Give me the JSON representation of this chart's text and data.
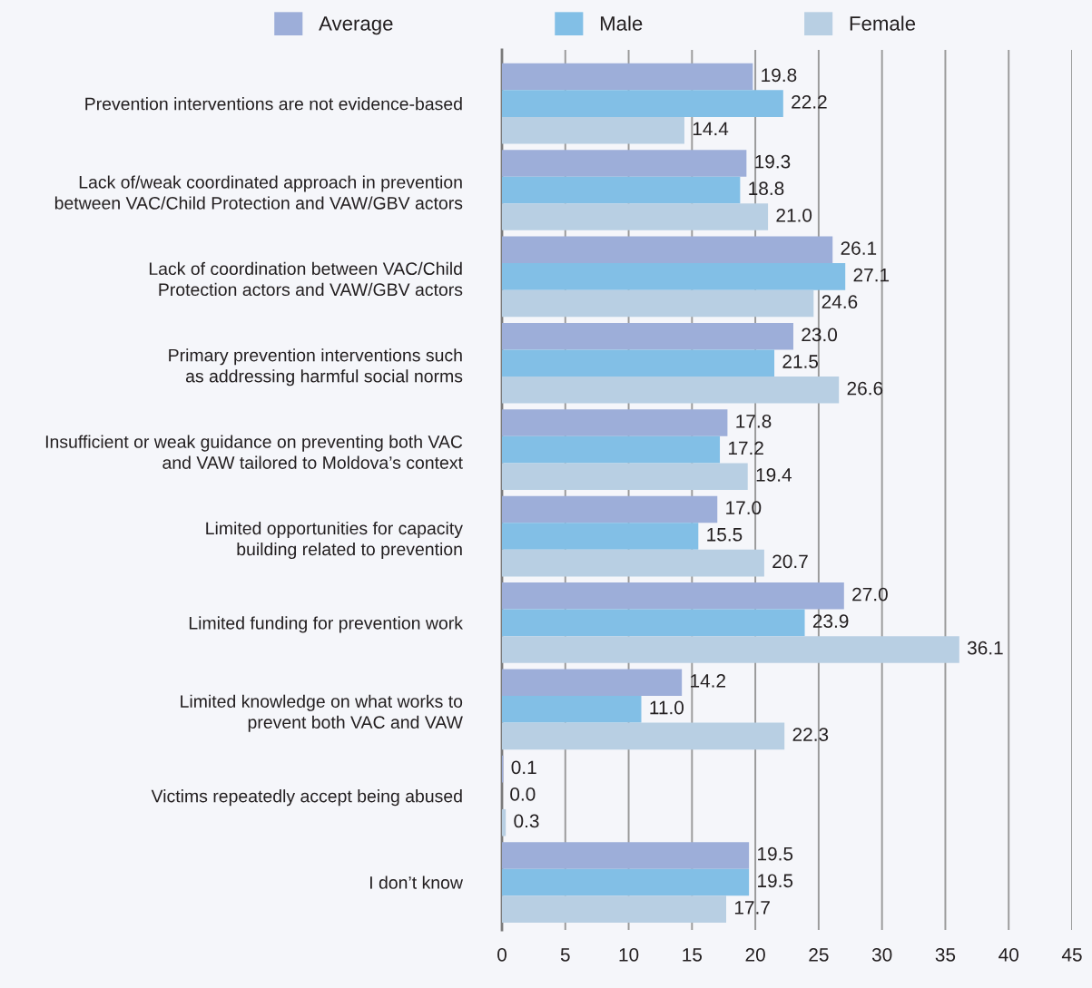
{
  "chart_data": {
    "type": "bar",
    "orientation": "horizontal",
    "categories": [
      "Prevention interventions are not evidence-based",
      "Lack of/weak coordinated approach in prevention\nbetween VAC/Child Protection and VAW/GBV actors",
      "Lack of coordination between VAC/Child\nProtection actors and VAW/GBV actors",
      "Primary prevention interventions such\nas addressing harmful social norms",
      "Insufficient or weak guidance on preventing both VAC\nand VAW tailored to Moldova’s context",
      "Limited opportunities for capacity\nbuilding related to prevention",
      "Limited funding for prevention work",
      "Limited knowledge on what works to\nprevent both VAC and VAW",
      "Victims repeatedly accept being abused",
      "I don’t know"
    ],
    "series": [
      {
        "name": "Average",
        "color": "#9daed9",
        "values": [
          19.8,
          19.3,
          26.1,
          23.0,
          17.8,
          17.0,
          27.0,
          14.2,
          0.1,
          19.5
        ],
        "value_labels": [
          "19.8",
          "19.3",
          "26.1",
          "23.0",
          "17.8",
          "17.0",
          "27.0",
          "14.2",
          "0.1",
          "19.5"
        ]
      },
      {
        "name": "Male",
        "color": "#82bfe6",
        "values": [
          22.2,
          18.8,
          27.1,
          21.5,
          17.2,
          15.5,
          23.9,
          11.0,
          0.0,
          19.5
        ],
        "value_labels": [
          "22.2",
          "18.8",
          "27.1",
          "21.5",
          "17.2",
          "15.5",
          "23.9",
          "11.0",
          "0.0",
          "19.5"
        ]
      },
      {
        "name": "Female",
        "color": "#b8cfe3",
        "values": [
          14.4,
          21.0,
          24.6,
          26.6,
          19.4,
          20.7,
          36.1,
          22.3,
          0.3,
          17.7
        ],
        "value_labels": [
          "14.4",
          "21.0",
          "24.6",
          "26.6",
          "19.4",
          "20.7",
          "36.1",
          "22.3",
          "0.3",
          "17.7"
        ]
      }
    ],
    "xlim": [
      0,
      45
    ],
    "xticks": [
      0,
      5,
      10,
      15,
      20,
      25,
      30,
      35,
      40,
      45
    ],
    "grid": "x",
    "legend": "top"
  }
}
